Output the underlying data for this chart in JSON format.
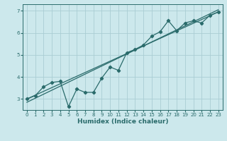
{
  "xlabel": "Humidex (Indice chaleur)",
  "ylabel": "",
  "bg_color": "#cce8ec",
  "grid_color": "#aacdd4",
  "line_color": "#2a6b6b",
  "xlim": [
    -0.5,
    23.5
  ],
  "ylim": [
    2.5,
    7.3
  ],
  "yticks": [
    3,
    4,
    5,
    6,
    7
  ],
  "xticks": [
    0,
    1,
    2,
    3,
    4,
    5,
    6,
    7,
    8,
    9,
    10,
    11,
    12,
    13,
    14,
    15,
    16,
    17,
    18,
    19,
    20,
    21,
    22,
    23
  ],
  "data_x": [
    0,
    1,
    2,
    3,
    4,
    5,
    6,
    7,
    8,
    9,
    10,
    11,
    12,
    13,
    14,
    15,
    16,
    17,
    18,
    19,
    20,
    21,
    22,
    23
  ],
  "data_y": [
    3.0,
    3.15,
    3.55,
    3.75,
    3.8,
    2.65,
    3.45,
    3.3,
    3.3,
    3.95,
    4.45,
    4.3,
    5.1,
    5.25,
    5.45,
    5.85,
    6.05,
    6.55,
    6.1,
    6.45,
    6.55,
    6.45,
    6.8,
    6.95
  ],
  "line1_x": [
    0,
    23
  ],
  "line1_y": [
    3.0,
    6.95
  ],
  "line2_x": [
    0,
    23
  ],
  "line2_y": [
    2.85,
    7.05
  ],
  "marker": "D",
  "marker_size": 2.2,
  "linewidth": 0.9,
  "tick_fontsize": 5.0,
  "xlabel_fontsize": 6.5,
  "xlabel_fontweight": "bold"
}
